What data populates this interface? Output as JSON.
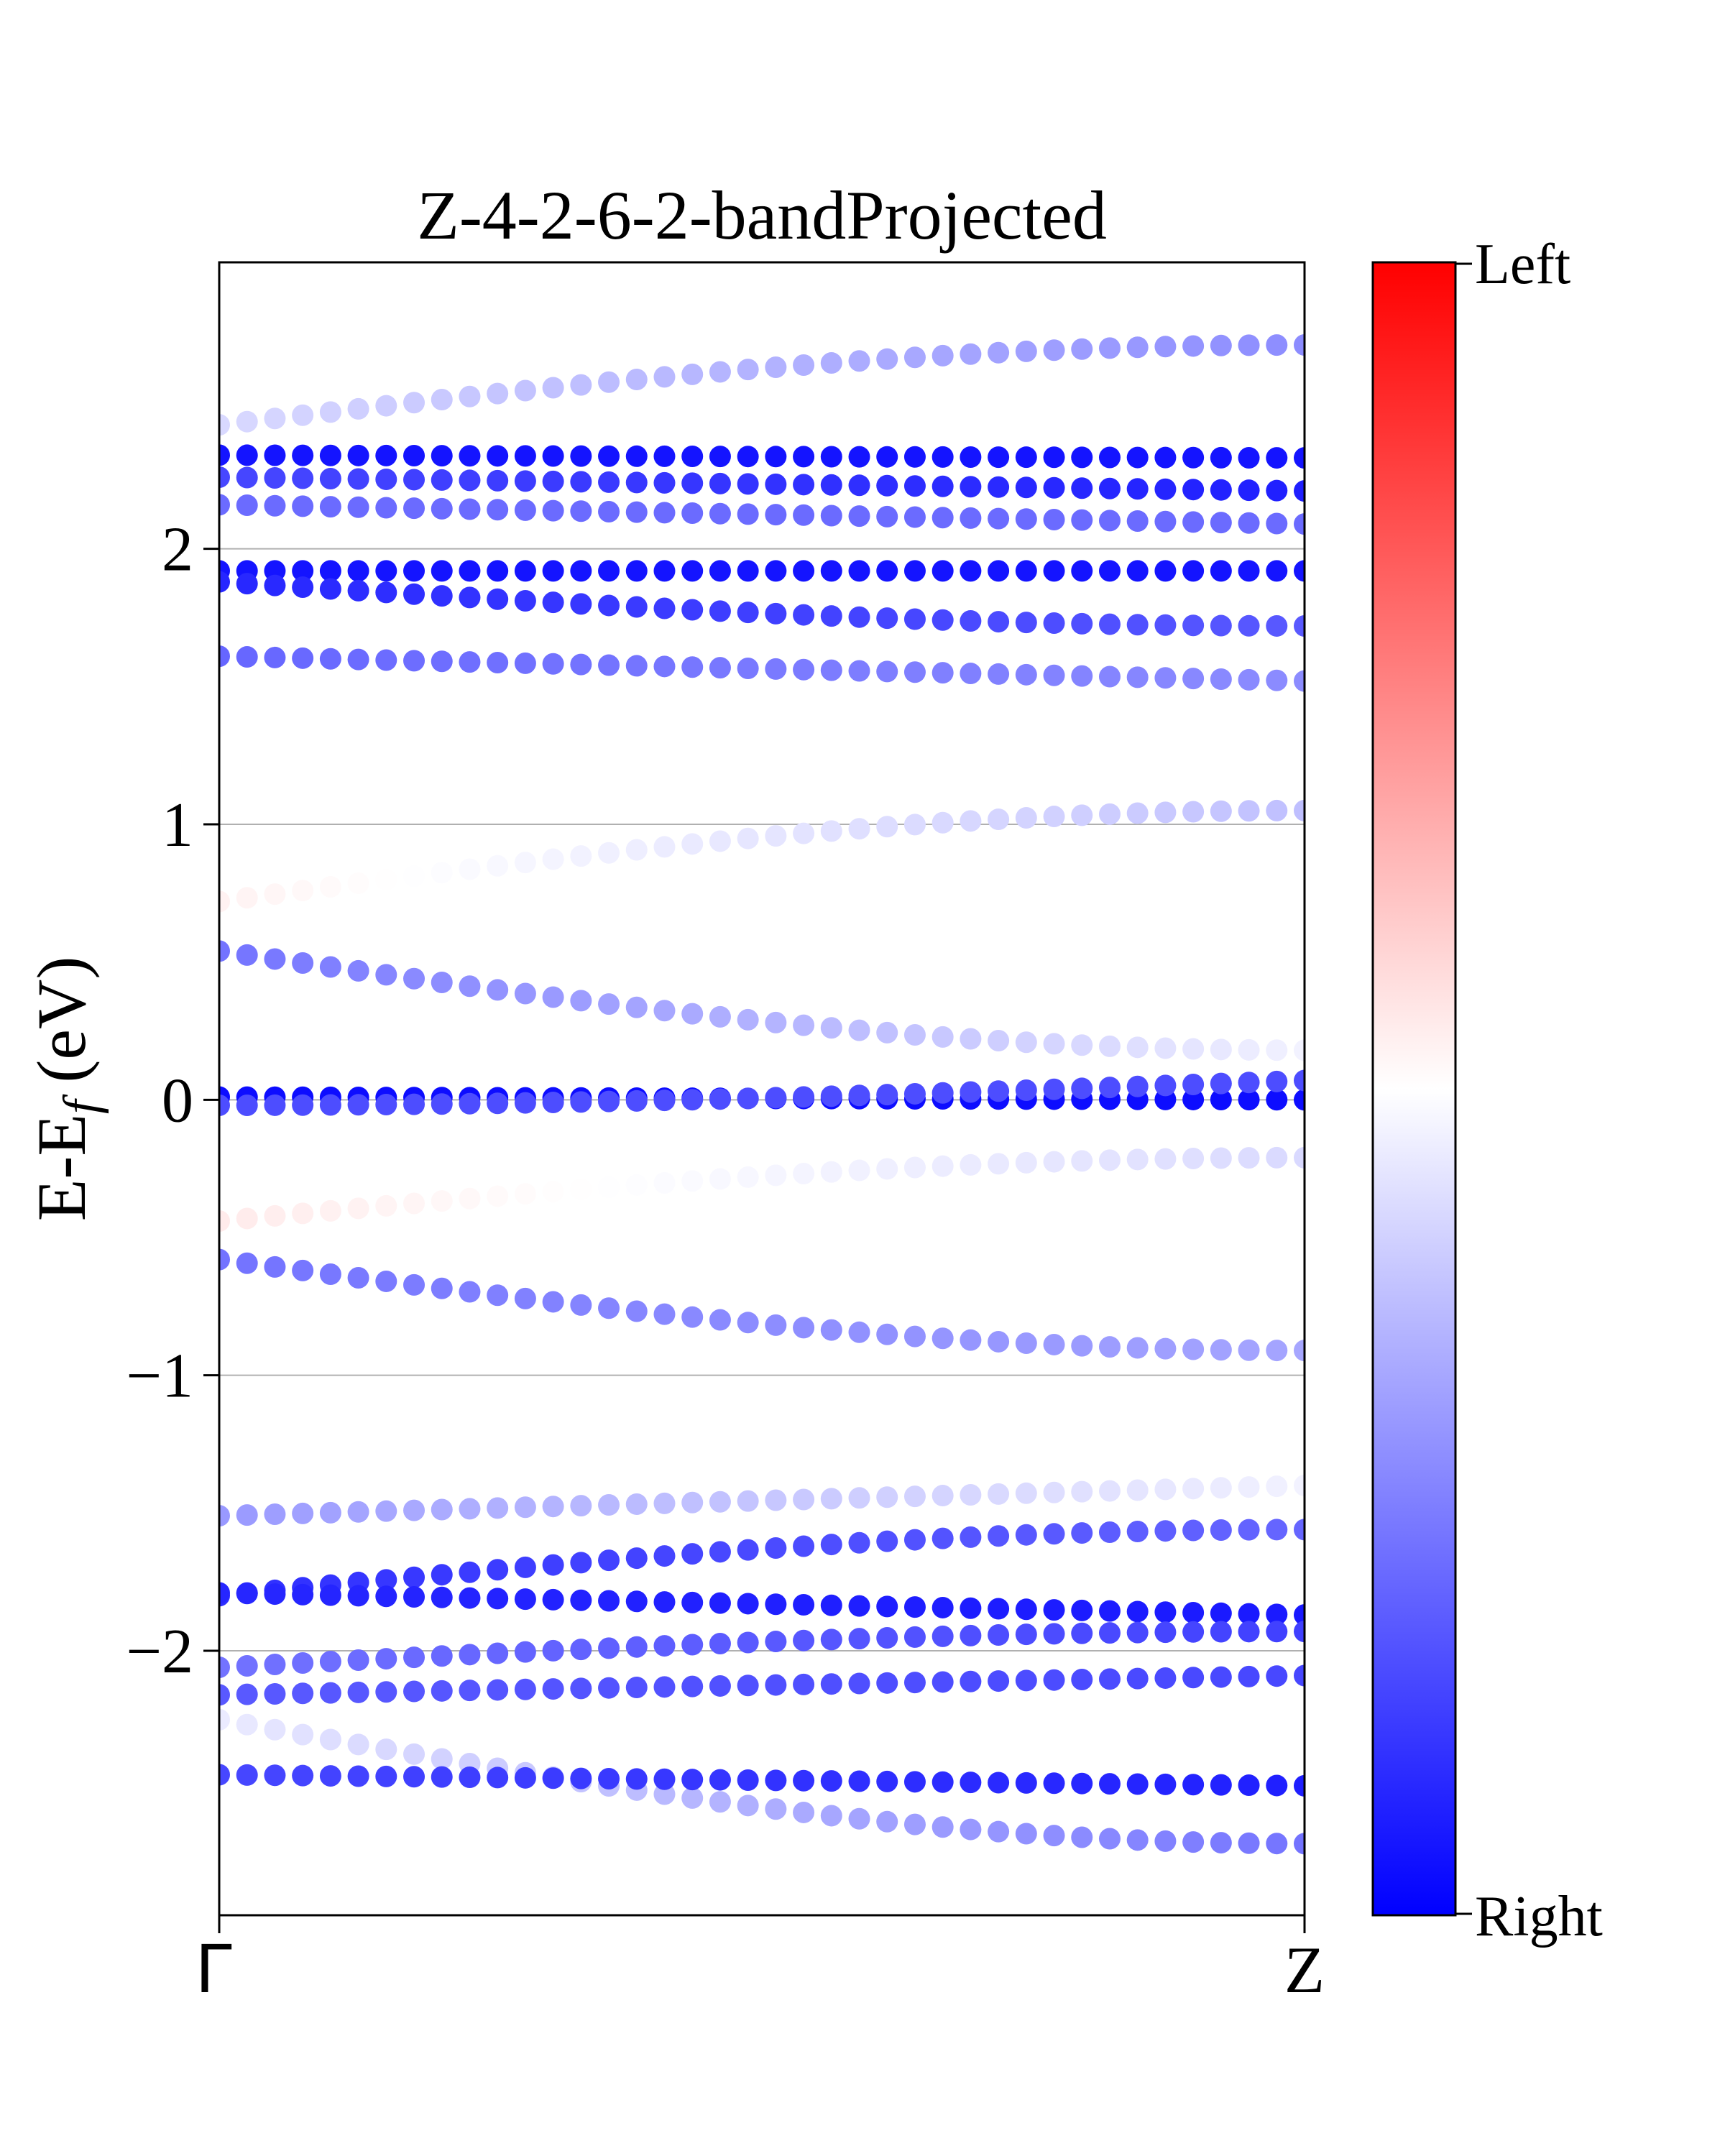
{
  "chart_data": {
    "type": "scatter",
    "title": "Z-4-2-6-2-bandProjected",
    "ylabel_main": "E-E",
    "ylabel_sub": "f",
    "ylabel_tail": " (eV)",
    "xticks": [
      "Γ",
      "Z"
    ],
    "yticks": [
      {
        "value": 2,
        "label": "2"
      },
      {
        "value": 1,
        "label": "1"
      },
      {
        "value": 0,
        "label": "0"
      },
      {
        "value": -1,
        "label": "−1"
      },
      {
        "value": -2,
        "label": "−2"
      }
    ],
    "xlim": [
      0,
      1
    ],
    "ylim": [
      -2.96,
      3.04
    ],
    "grid": "horizontal",
    "points_per_band": 40,
    "colorbar": {
      "top_label": "Left",
      "bottom_label": "Right",
      "top_color": "#ff0000",
      "mid_color": "#ffffff",
      "bottom_color": "#0000ff",
      "range": [
        -1,
        1
      ]
    },
    "bands": [
      {
        "e": [
          2.45,
          2.74
        ],
        "p": [
          -0.15,
          -0.45
        ],
        "curve": "sin"
      },
      {
        "e": [
          2.34,
          2.33
        ],
        "p": [
          -0.92,
          -0.92
        ],
        "curve": "lin"
      },
      {
        "e": [
          2.26,
          2.21
        ],
        "p": [
          -0.72,
          -0.88
        ],
        "curve": "lin"
      },
      {
        "e": [
          2.16,
          2.09
        ],
        "p": [
          -0.58,
          -0.58
        ],
        "curve": "lin"
      },
      {
        "e": [
          1.92,
          1.92
        ],
        "p": [
          -0.92,
          -0.92
        ],
        "curve": "lin"
      },
      {
        "e": [
          1.88,
          1.72
        ],
        "p": [
          -0.85,
          -0.65
        ],
        "curve": "sin"
      },
      {
        "e": [
          1.61,
          1.52
        ],
        "p": [
          -0.6,
          -0.45
        ],
        "curve": "lin"
      },
      {
        "e": [
          0.72,
          1.05
        ],
        "p": [
          0.05,
          -0.25
        ],
        "curve": "sin"
      },
      {
        "e": [
          0.54,
          0.18
        ],
        "p": [
          -0.55,
          -0.05
        ],
        "curve": "sin"
      },
      {
        "e": [
          0.01,
          0.0
        ],
        "p": [
          -0.95,
          -0.95
        ],
        "curve": "lin"
      },
      {
        "e": [
          -0.02,
          0.07
        ],
        "p": [
          -0.7,
          -0.7
        ],
        "curve": "cos"
      },
      {
        "e": [
          -0.44,
          -0.21
        ],
        "p": [
          0.08,
          -0.15
        ],
        "curve": "sin"
      },
      {
        "e": [
          -0.58,
          -0.91
        ],
        "p": [
          -0.55,
          -0.35
        ],
        "curve": "sin"
      },
      {
        "e": [
          -1.51,
          -1.4
        ],
        "p": [
          -0.4,
          -0.05
        ],
        "curve": "lin"
      },
      {
        "e": [
          -1.8,
          -1.56
        ],
        "p": [
          -0.82,
          -0.6
        ],
        "curve": "sin"
      },
      {
        "e": [
          -1.79,
          -1.87
        ],
        "p": [
          -0.85,
          -0.9
        ],
        "curve": "lin"
      },
      {
        "e": [
          -2.06,
          -1.93
        ],
        "p": [
          -0.55,
          -0.75
        ],
        "curve": "sin"
      },
      {
        "e": [
          -2.16,
          -2.09
        ],
        "p": [
          -0.65,
          -0.72
        ],
        "curve": "lin"
      },
      {
        "e": [
          -2.25,
          -2.7
        ],
        "p": [
          -0.08,
          -0.55
        ],
        "curve": "sin"
      },
      {
        "e": [
          -2.45,
          -2.49
        ],
        "p": [
          -0.72,
          -0.88
        ],
        "curve": "lin"
      }
    ]
  }
}
